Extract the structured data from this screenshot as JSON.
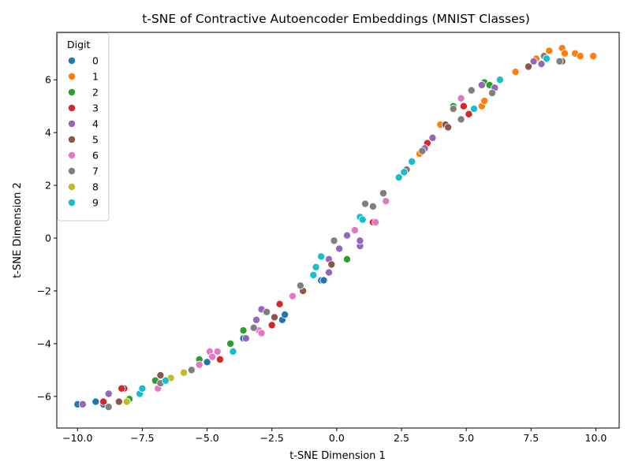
{
  "chart_data": {
    "type": "scatter",
    "title": "t-SNE of Contractive Autoencoder Embeddings (MNIST Classes)",
    "xlabel": "t-SNE Dimension 1",
    "ylabel": "t-SNE Dimension 2",
    "xlim": [
      -10.8,
      10.9
    ],
    "ylim": [
      -7.2,
      7.8
    ],
    "xticks": [
      -10.0,
      -7.5,
      -5.0,
      -2.5,
      0.0,
      2.5,
      5.0,
      7.5,
      10.0
    ],
    "xtick_labels": [
      "−10.0",
      "−7.5",
      "−5.0",
      "−2.5",
      "0.0",
      "2.5",
      "5.0",
      "7.5",
      "10.0"
    ],
    "yticks": [
      -6,
      -4,
      -2,
      0,
      2,
      4,
      6
    ],
    "ytick_labels": [
      "−6",
      "−4",
      "−2",
      "0",
      "2",
      "4",
      "6"
    ],
    "grid": false,
    "legend": {
      "title": "Digit",
      "placement": "top-left"
    },
    "series": [
      {
        "name": "0",
        "color": "#1f77b4",
        "points": [
          [
            -10.0,
            -6.3
          ],
          [
            -9.3,
            -6.2
          ],
          [
            -9.0,
            -6.3
          ],
          [
            -7.5,
            -5.7
          ],
          [
            -5.0,
            -4.7
          ],
          [
            -3.6,
            -3.8
          ],
          [
            -2.1,
            -3.1
          ],
          [
            -2.0,
            -2.9
          ],
          [
            -0.6,
            -1.6
          ],
          [
            -0.5,
            -1.6
          ]
        ]
      },
      {
        "name": "1",
        "color": "#ff7f0e",
        "points": [
          [
            3.2,
            3.2
          ],
          [
            4.0,
            4.3
          ],
          [
            5.6,
            5.0
          ],
          [
            5.7,
            5.2
          ],
          [
            6.9,
            6.3
          ],
          [
            7.7,
            6.8
          ],
          [
            8.2,
            7.1
          ],
          [
            8.7,
            7.2
          ],
          [
            8.8,
            7.0
          ],
          [
            9.2,
            7.0
          ],
          [
            9.4,
            6.9
          ],
          [
            9.9,
            6.9
          ]
        ]
      },
      {
        "name": "2",
        "color": "#2ca02c",
        "points": [
          [
            -8.0,
            -6.1
          ],
          [
            -7.0,
            -5.4
          ],
          [
            -5.3,
            -4.6
          ],
          [
            -4.1,
            -4.0
          ],
          [
            -3.6,
            -3.5
          ],
          [
            0.4,
            -0.8
          ],
          [
            4.5,
            5.0
          ],
          [
            5.7,
            5.9
          ],
          [
            5.9,
            5.8
          ]
        ]
      },
      {
        "name": "3",
        "color": "#d62728",
        "points": [
          [
            -9.0,
            -6.2
          ],
          [
            -8.2,
            -5.7
          ],
          [
            -8.3,
            -5.7
          ],
          [
            -4.5,
            -4.6
          ],
          [
            -3.0,
            -3.5
          ],
          [
            -2.5,
            -3.3
          ],
          [
            -2.2,
            -2.5
          ],
          [
            1.4,
            0.6
          ],
          [
            3.5,
            3.6
          ],
          [
            4.9,
            5.0
          ],
          [
            5.1,
            4.7
          ]
        ]
      },
      {
        "name": "4",
        "color": "#9467bd",
        "points": [
          [
            -9.8,
            -6.3
          ],
          [
            -8.8,
            -5.9
          ],
          [
            -3.5,
            -3.8
          ],
          [
            -3.1,
            -3.1
          ],
          [
            -2.9,
            -2.7
          ],
          [
            -0.3,
            -1.3
          ],
          [
            -0.3,
            -0.8
          ],
          [
            0.1,
            -0.4
          ],
          [
            0.4,
            0.1
          ],
          [
            0.9,
            -0.3
          ],
          [
            0.9,
            -0.1
          ],
          [
            3.4,
            3.4
          ],
          [
            3.7,
            3.8
          ],
          [
            5.6,
            5.8
          ],
          [
            6.1,
            5.7
          ],
          [
            7.6,
            6.7
          ],
          [
            7.9,
            6.6
          ]
        ]
      },
      {
        "name": "5",
        "color": "#8c564b",
        "points": [
          [
            -8.4,
            -6.2
          ],
          [
            -6.8,
            -5.2
          ],
          [
            -2.4,
            -3.0
          ],
          [
            -1.3,
            -2.0
          ],
          [
            -0.2,
            -1.0
          ],
          [
            4.2,
            4.3
          ],
          [
            4.3,
            4.2
          ],
          [
            7.4,
            6.5
          ],
          [
            8.7,
            6.7
          ]
        ]
      },
      {
        "name": "6",
        "color": "#e377c2",
        "points": [
          [
            -6.9,
            -5.7
          ],
          [
            -5.3,
            -4.8
          ],
          [
            -4.9,
            -4.3
          ],
          [
            -4.8,
            -4.5
          ],
          [
            -4.6,
            -4.3
          ],
          [
            -3.0,
            -3.5
          ],
          [
            -2.9,
            -3.6
          ],
          [
            -1.7,
            -2.2
          ],
          [
            0.7,
            0.3
          ],
          [
            1.5,
            0.6
          ],
          [
            1.9,
            1.4
          ],
          [
            4.8,
            5.3
          ]
        ]
      },
      {
        "name": "7",
        "color": "#7f7f7f",
        "points": [
          [
            -8.8,
            -6.4
          ],
          [
            -6.8,
            -5.5
          ],
          [
            -5.6,
            -5.0
          ],
          [
            -3.2,
            -3.4
          ],
          [
            -2.7,
            -2.8
          ],
          [
            -1.4,
            -1.8
          ],
          [
            -0.1,
            -0.1
          ],
          [
            1.1,
            1.3
          ],
          [
            1.4,
            1.2
          ],
          [
            1.8,
            1.7
          ],
          [
            2.7,
            2.6
          ],
          [
            3.3,
            3.3
          ],
          [
            4.5,
            4.9
          ],
          [
            4.8,
            4.5
          ],
          [
            5.2,
            5.6
          ],
          [
            6.0,
            5.5
          ],
          [
            8.0,
            6.9
          ],
          [
            8.6,
            6.7
          ]
        ]
      },
      {
        "name": "8",
        "color": "#bcbd22",
        "points": [
          [
            -8.1,
            -6.2
          ],
          [
            -6.4,
            -5.3
          ],
          [
            -5.9,
            -5.1
          ]
        ]
      },
      {
        "name": "9",
        "color": "#17becf",
        "points": [
          [
            -7.6,
            -5.9
          ],
          [
            -7.5,
            -5.7
          ],
          [
            -6.6,
            -5.4
          ],
          [
            -4.0,
            -4.3
          ],
          [
            -0.9,
            -1.4
          ],
          [
            -0.8,
            -1.1
          ],
          [
            -0.6,
            -0.7
          ],
          [
            0.9,
            0.8
          ],
          [
            1.0,
            0.7
          ],
          [
            2.4,
            2.3
          ],
          [
            2.6,
            2.5
          ],
          [
            2.9,
            2.9
          ],
          [
            5.3,
            4.9
          ],
          [
            6.3,
            6.0
          ],
          [
            8.1,
            6.8
          ]
        ]
      }
    ]
  }
}
